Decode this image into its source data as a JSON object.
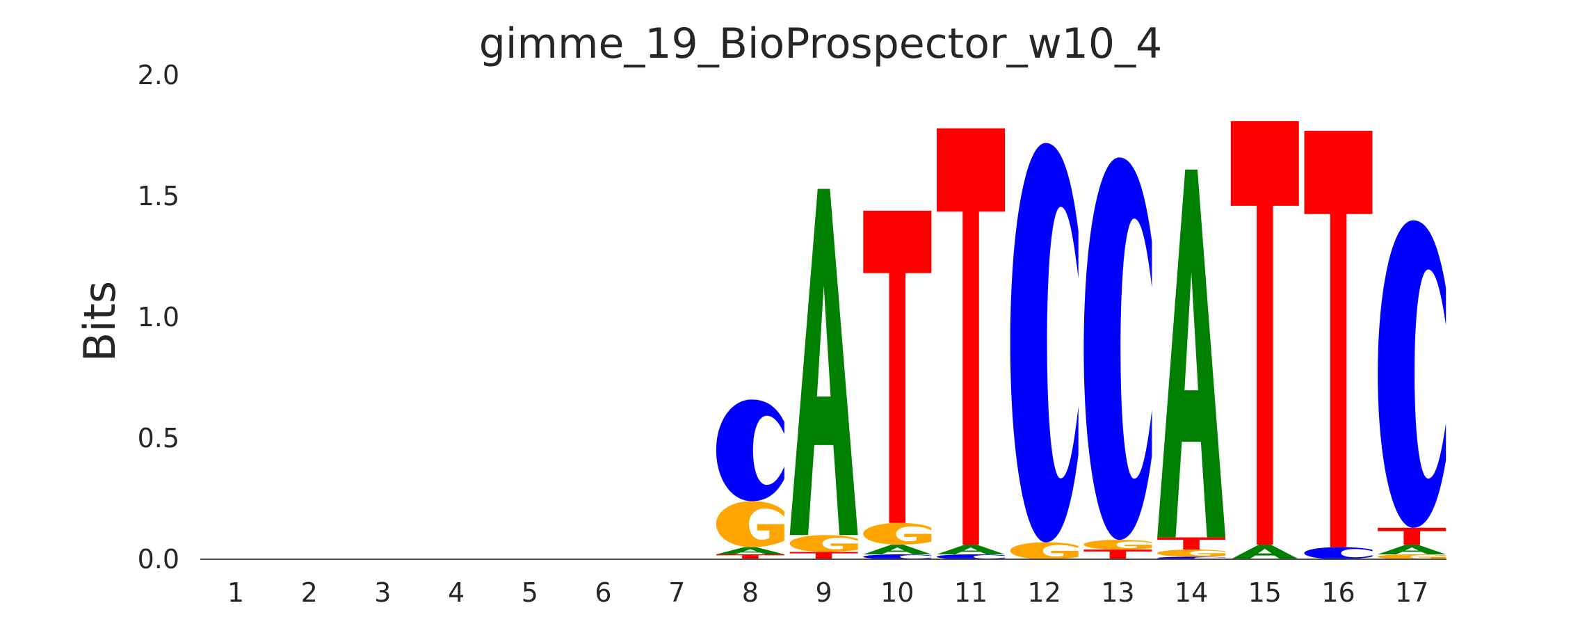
{
  "chart_data": {
    "type": "sequence-logo",
    "title": "gimme_19_BioProspector_w10_4",
    "ylabel": "Bits",
    "xlabel": "",
    "ylim": [
      0,
      2
    ],
    "yticks": [
      "0.0",
      "0.5",
      "1.0",
      "1.5",
      "2.0"
    ],
    "grid": false,
    "letter_colors": {
      "A": "#008000",
      "C": "#0000ff",
      "G": "#ffa500",
      "T": "#ff0000"
    },
    "positions": [
      {
        "pos": "1",
        "stack": []
      },
      {
        "pos": "2",
        "stack": []
      },
      {
        "pos": "3",
        "stack": []
      },
      {
        "pos": "4",
        "stack": []
      },
      {
        "pos": "5",
        "stack": []
      },
      {
        "pos": "6",
        "stack": []
      },
      {
        "pos": "7",
        "stack": []
      },
      {
        "pos": "8",
        "stack": [
          {
            "base": "T",
            "bits": 0.02
          },
          {
            "base": "A",
            "bits": 0.03
          },
          {
            "base": "G",
            "bits": 0.19
          },
          {
            "base": "C",
            "bits": 0.42
          }
        ]
      },
      {
        "pos": "9",
        "stack": [
          {
            "base": "T",
            "bits": 0.03
          },
          {
            "base": "G",
            "bits": 0.07
          },
          {
            "base": "A",
            "bits": 1.43
          }
        ]
      },
      {
        "pos": "10",
        "stack": [
          {
            "base": "C",
            "bits": 0.02
          },
          {
            "base": "A",
            "bits": 0.04
          },
          {
            "base": "G",
            "bits": 0.09
          },
          {
            "base": "T",
            "bits": 1.29
          }
        ]
      },
      {
        "pos": "11",
        "stack": [
          {
            "base": "C",
            "bits": 0.02
          },
          {
            "base": "A",
            "bits": 0.04
          },
          {
            "base": "T",
            "bits": 1.72
          }
        ]
      },
      {
        "pos": "12",
        "stack": [
          {
            "base": "G",
            "bits": 0.07
          },
          {
            "base": "C",
            "bits": 1.65
          }
        ]
      },
      {
        "pos": "13",
        "stack": [
          {
            "base": "T",
            "bits": 0.04
          },
          {
            "base": "G",
            "bits": 0.04
          },
          {
            "base": "C",
            "bits": 1.58
          }
        ]
      },
      {
        "pos": "14",
        "stack": [
          {
            "base": "C",
            "bits": 0.01
          },
          {
            "base": "G",
            "bits": 0.03
          },
          {
            "base": "T",
            "bits": 0.05
          },
          {
            "base": "A",
            "bits": 1.52
          }
        ]
      },
      {
        "pos": "15",
        "stack": [
          {
            "base": "A",
            "bits": 0.06
          },
          {
            "base": "T",
            "bits": 1.75
          }
        ]
      },
      {
        "pos": "16",
        "stack": [
          {
            "base": "C",
            "bits": 0.05
          },
          {
            "base": "T",
            "bits": 1.72
          }
        ]
      },
      {
        "pos": "17",
        "stack": [
          {
            "base": "G",
            "bits": 0.02
          },
          {
            "base": "A",
            "bits": 0.04
          },
          {
            "base": "T",
            "bits": 0.07
          },
          {
            "base": "C",
            "bits": 1.27
          }
        ]
      }
    ]
  }
}
